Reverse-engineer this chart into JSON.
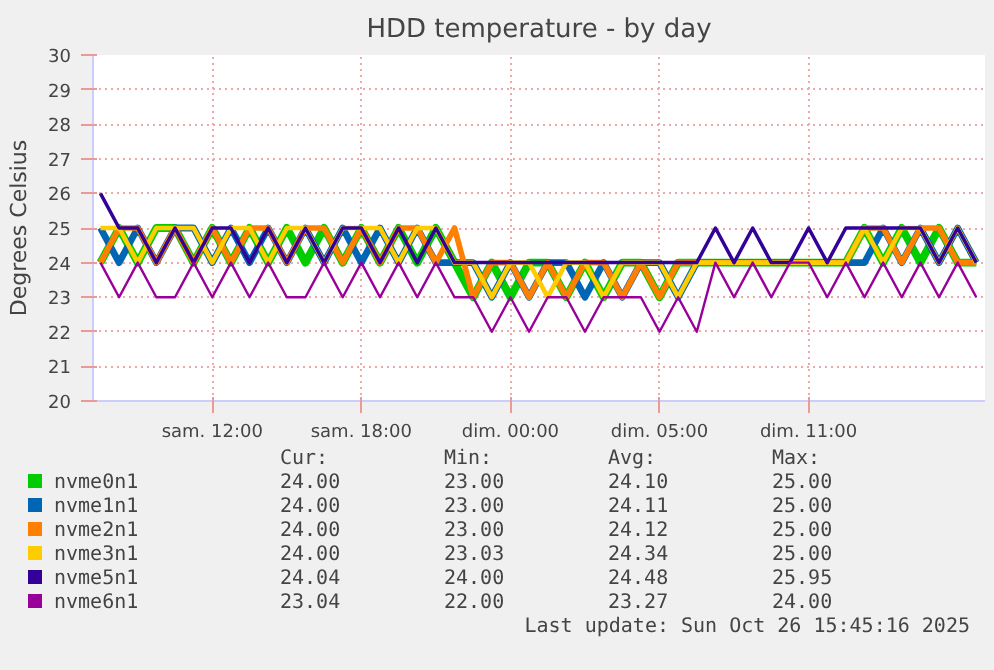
{
  "chart_data": {
    "type": "line",
    "title": "HDD temperature - by day",
    "ylabel": "Degrees Celsius",
    "x": [
      "2025-10-25T05:30",
      "2025-10-25T06:15",
      "2025-10-25T07:00",
      "2025-10-25T07:45",
      "2025-10-25T08:30",
      "2025-10-25T09:15",
      "2025-10-25T10:00",
      "2025-10-25T10:45",
      "2025-10-25T11:30",
      "2025-10-25T12:15",
      "2025-10-25T13:00",
      "2025-10-25T13:45",
      "2025-10-25T14:30",
      "2025-10-25T15:15",
      "2025-10-25T16:00",
      "2025-10-25T16:45",
      "2025-10-25T17:30",
      "2025-10-25T18:15",
      "2025-10-25T19:00",
      "2025-10-25T19:45",
      "2025-10-25T20:30",
      "2025-10-25T21:15",
      "2025-10-25T22:00",
      "2025-10-25T22:45",
      "2025-10-25T23:30",
      "2025-10-26T00:15",
      "2025-10-26T01:00",
      "2025-10-26T01:45",
      "2025-10-26T02:30",
      "2025-10-26T03:15",
      "2025-10-26T04:00",
      "2025-10-26T04:45",
      "2025-10-26T05:30",
      "2025-10-26T06:15",
      "2025-10-26T07:00",
      "2025-10-26T07:45",
      "2025-10-26T08:30",
      "2025-10-26T09:15",
      "2025-10-26T10:00",
      "2025-10-26T10:45",
      "2025-10-26T11:30",
      "2025-10-26T12:15",
      "2025-10-26T13:00",
      "2025-10-26T13:45",
      "2025-10-26T14:30",
      "2025-10-26T15:15",
      "2025-10-26T16:00",
      "2025-10-26T16:45"
    ],
    "xlim": [
      "2025-10-25T05:12",
      "2025-10-26T17:06"
    ],
    "xticks": [
      {
        "value": "2025-10-25T10:00",
        "label": "sam. 12:00"
      },
      {
        "value": "2025-10-25T16:00",
        "label": "sam. 18:00"
      },
      {
        "value": "2025-10-25T22:00",
        "label": "dim. 00:00"
      },
      {
        "value": "2025-10-26T04:00",
        "label": "dim. 05:00"
      },
      {
        "value": "2025-10-26T10:00",
        "label": "dim. 11:00"
      }
    ],
    "ylim": [
      20,
      30
    ],
    "yticks": [
      20,
      21,
      22,
      23,
      24,
      25,
      26,
      27,
      28,
      29,
      30
    ],
    "grid": true,
    "legend": "bottom",
    "line_style": "solid",
    "series": [
      {
        "name": "nvme0n1",
        "color": "#00cc00",
        "values": [
          24,
          25,
          24,
          25,
          25,
          24,
          25,
          24,
          25,
          24,
          25,
          24,
          25,
          24,
          25,
          24,
          25,
          24,
          25,
          24,
          23,
          24,
          23,
          24,
          24,
          23,
          24,
          23,
          24,
          24,
          23,
          24,
          24,
          24,
          24,
          24,
          24,
          24,
          24,
          24,
          24,
          25,
          24,
          25,
          24,
          25,
          24,
          24
        ]
      },
      {
        "name": "nvme1n1",
        "color": "#0066b3",
        "values": [
          25,
          24,
          25,
          24,
          25,
          25,
          24,
          25,
          24,
          25,
          24,
          25,
          24,
          25,
          24,
          25,
          24,
          25,
          24,
          24,
          24,
          23,
          24,
          23,
          24,
          24,
          23,
          24,
          23,
          24,
          24,
          23,
          24,
          24,
          24,
          24,
          24,
          24,
          24,
          24,
          24,
          24,
          25,
          24,
          25,
          24,
          25,
          24
        ]
      },
      {
        "name": "nvme2n1",
        "color": "#ff8000",
        "values": [
          24,
          25,
          25,
          24,
          25,
          24,
          25,
          24,
          25,
          25,
          24,
          25,
          25,
          24,
          25,
          24,
          25,
          25,
          24,
          25,
          23,
          24,
          24,
          23,
          24,
          23,
          24,
          24,
          23,
          24,
          23,
          24,
          24,
          24,
          24,
          24,
          24,
          24,
          24,
          24,
          24,
          25,
          25,
          24,
          25,
          25,
          24,
          24
        ]
      },
      {
        "name": "nvme3n1",
        "color": "#ffcc00",
        "values": [
          25,
          25,
          24,
          25,
          25,
          25,
          24,
          25,
          25,
          24,
          25,
          25,
          24,
          25,
          25,
          25,
          24,
          25,
          25,
          24,
          24,
          23,
          24,
          24,
          23,
          24,
          24,
          23,
          24,
          24,
          24,
          23,
          24,
          24,
          24,
          24,
          24,
          24,
          24,
          24,
          24,
          25,
          24,
          25,
          25,
          24,
          25,
          24
        ]
      },
      {
        "name": "nvme5n1",
        "color": "#330099",
        "values": [
          26,
          25,
          25,
          24,
          25,
          24,
          25,
          25,
          24,
          25,
          24,
          25,
          24,
          25,
          25,
          24,
          25,
          24,
          25,
          24,
          24,
          24,
          24,
          24,
          24,
          24,
          24,
          24,
          24,
          24,
          24,
          24,
          24,
          25,
          24,
          25,
          24,
          24,
          25,
          24,
          25,
          25,
          25,
          25,
          25,
          24,
          25,
          24
        ]
      },
      {
        "name": "nvme6n1",
        "color": "#990099",
        "values": [
          24,
          23,
          24,
          23,
          23,
          24,
          23,
          24,
          23,
          24,
          23,
          23,
          24,
          23,
          24,
          23,
          24,
          23,
          24,
          23,
          23,
          22,
          23,
          22,
          23,
          23,
          22,
          23,
          23,
          23,
          22,
          23,
          22,
          24,
          23,
          24,
          23,
          24,
          24,
          23,
          24,
          23,
          24,
          23,
          24,
          23,
          24,
          23
        ]
      }
    ],
    "annotations": [
      "Cur:",
      "Min:",
      "Avg:",
      "Max:",
      "24.00",
      "23.00",
      "24.10",
      "25.00",
      "24.00",
      "23.00",
      "24.11",
      "25.00",
      "24.00",
      "23.00",
      "24.12",
      "25.00",
      "24.00",
      "23.03",
      "24.34",
      "25.00",
      "24.04",
      "24.00",
      "24.48",
      "25.95",
      "23.04",
      "22.00",
      "23.27",
      "24.00",
      "Last update: Sun Oct 26 15:45:16 2025"
    ]
  }
}
